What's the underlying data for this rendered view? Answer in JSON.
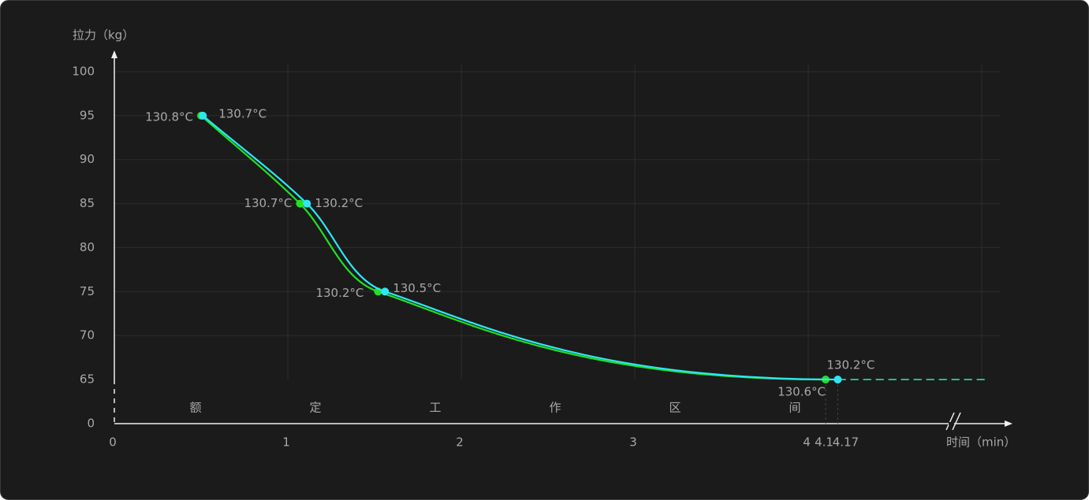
{
  "chart_data": {
    "type": "line",
    "y_label": "拉力（kg）",
    "x_label": "时间（min）",
    "zone_chars": [
      "额",
      "定",
      "工",
      "作",
      "区",
      "间"
    ],
    "xlim": [
      0,
      5
    ],
    "xticks": [
      0,
      1,
      2,
      3,
      4
    ],
    "ylim": [
      0,
      100
    ],
    "ybreak": [
      0,
      65
    ],
    "yticks": [
      0,
      65,
      70,
      75,
      80,
      85,
      90,
      95,
      100
    ],
    "grid": true,
    "series": [
      {
        "color": "#22e022",
        "x": [
          0.5,
          1.07,
          1.52,
          4.1
        ],
        "values": [
          95,
          85,
          75,
          65
        ],
        "value_labels": [
          "130.8°C",
          "130.7°C",
          "130.2°C",
          "130.6°C"
        ]
      },
      {
        "color": "#2ee6f2",
        "x": [
          0.51,
          1.11,
          1.56,
          4.17
        ],
        "values": [
          95,
          85,
          75,
          65
        ],
        "value_labels": [
          "130.7°C",
          "130.2°C",
          "130.5°C",
          "130.2°C"
        ]
      }
    ]
  }
}
